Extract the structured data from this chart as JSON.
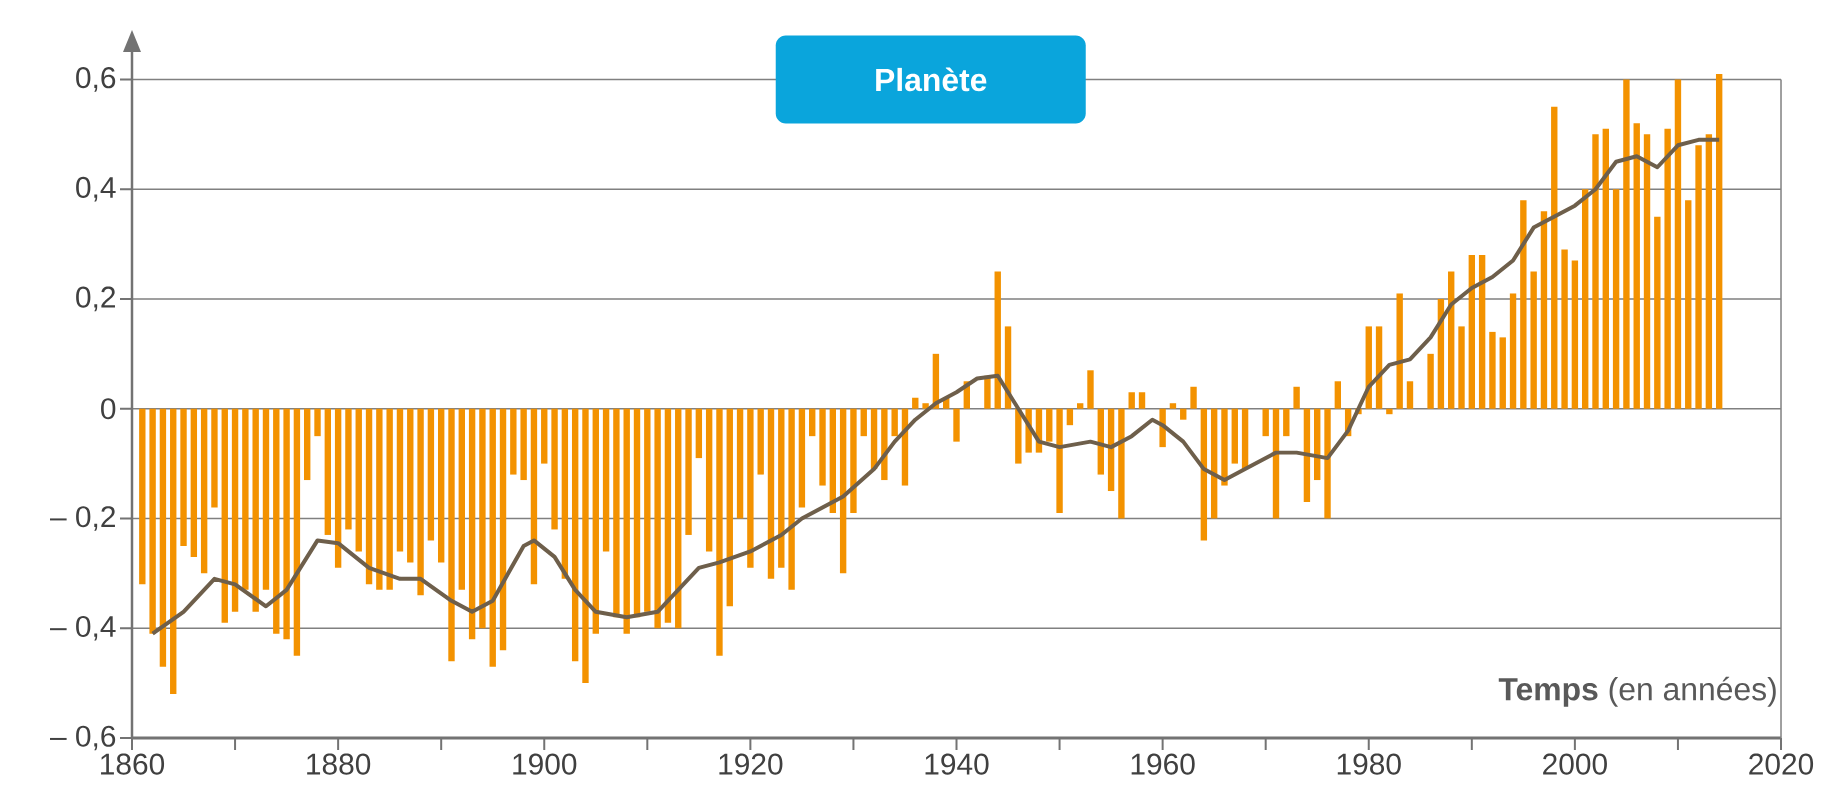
{
  "chart_data": {
    "type": "bar",
    "title": "Planète",
    "xlabel": "**Temps** (en années)",
    "xlim": [
      1860,
      2020
    ],
    "ylim": [
      -0.6,
      0.65
    ],
    "grid": "y",
    "xticks": [
      1860,
      {
        "value": 1870,
        "label": null
      },
      1880,
      {
        "value": 1890,
        "label": null
      },
      1900,
      {
        "value": 1910,
        "label": null
      },
      1920,
      {
        "value": 1930,
        "label": null
      },
      1940,
      {
        "value": 1950,
        "label": null
      },
      1960,
      {
        "value": 1970,
        "label": null
      },
      1980,
      {
        "value": 1990,
        "label": null
      },
      2000,
      {
        "value": 2010,
        "label": null
      },
      2020
    ],
    "yticks": [
      {
        "value": -0.6,
        "label": "– 0,6"
      },
      {
        "value": -0.4,
        "label": "– 0,4"
      },
      {
        "value": -0.2,
        "label": "– 0,2"
      },
      0,
      {
        "value": 0.2,
        "label": "0,2"
      },
      {
        "value": 0.4,
        "label": "0,4"
      },
      {
        "value": 0.6,
        "label": "0,6"
      }
    ],
    "series": [
      {
        "color": "#f39200",
        "x": [
          1861,
          1862,
          1863,
          1864,
          1865,
          1866,
          1867,
          1868,
          1869,
          1870,
          1871,
          1872,
          1873,
          1874,
          1875,
          1876,
          1877,
          1878,
          1879,
          1880,
          1881,
          1882,
          1883,
          1884,
          1885,
          1886,
          1887,
          1888,
          1889,
          1890,
          1891,
          1892,
          1893,
          1894,
          1895,
          1896,
          1897,
          1898,
          1899,
          1900,
          1901,
          1902,
          1903,
          1904,
          1905,
          1906,
          1907,
          1908,
          1909,
          1910,
          1911,
          1912,
          1913,
          1914,
          1915,
          1916,
          1917,
          1918,
          1919,
          1920,
          1921,
          1922,
          1923,
          1924,
          1925,
          1926,
          1927,
          1928,
          1929,
          1930,
          1931,
          1932,
          1933,
          1934,
          1935,
          1936,
          1937,
          1938,
          1939,
          1940,
          1941,
          1942,
          1943,
          1944,
          1945,
          1946,
          1947,
          1948,
          1949,
          1950,
          1951,
          1952,
          1953,
          1954,
          1955,
          1956,
          1957,
          1958,
          1959,
          1960,
          1961,
          1962,
          1963,
          1964,
          1965,
          1966,
          1967,
          1968,
          1969,
          1970,
          1971,
          1972,
          1973,
          1974,
          1975,
          1976,
          1977,
          1978,
          1979,
          1980,
          1981,
          1982,
          1983,
          1984,
          1985,
          1986,
          1987,
          1988,
          1989,
          1990,
          1991,
          1992,
          1993,
          1994,
          1995,
          1996,
          1997,
          1998,
          1999,
          2000,
          2001,
          2002,
          2003,
          2004,
          2005,
          2006,
          2007,
          2008,
          2009,
          2010,
          2011,
          2012,
          2013,
          2014
        ],
        "values": [
          -0.32,
          -0.41,
          -0.47,
          -0.52,
          -0.25,
          -0.27,
          -0.3,
          -0.18,
          -0.39,
          -0.37,
          -0.33,
          -0.37,
          -0.33,
          -0.41,
          -0.42,
          -0.45,
          -0.13,
          -0.05,
          -0.23,
          -0.29,
          -0.22,
          -0.26,
          -0.32,
          -0.33,
          -0.33,
          -0.26,
          -0.28,
          -0.34,
          -0.24,
          -0.28,
          -0.46,
          -0.33,
          -0.42,
          -0.4,
          -0.47,
          -0.44,
          -0.12,
          -0.13,
          -0.32,
          -0.1,
          -0.22,
          -0.31,
          -0.46,
          -0.5,
          -0.41,
          -0.26,
          -0.38,
          -0.41,
          -0.38,
          -0.37,
          -0.4,
          -0.39,
          -0.4,
          -0.23,
          -0.09,
          -0.26,
          -0.45,
          -0.36,
          -0.2,
          -0.29,
          -0.12,
          -0.31,
          -0.29,
          -0.33,
          -0.18,
          -0.05,
          -0.14,
          -0.19,
          -0.3,
          -0.19,
          -0.05,
          -0.11,
          -0.13,
          -0.05,
          -0.14,
          0.02,
          0.01,
          0.1,
          0.02,
          -0.06,
          0.05,
          0.0,
          0.06,
          0.25,
          0.15,
          -0.1,
          -0.08,
          -0.08,
          -0.06,
          -0.19,
          -0.03,
          0.01,
          0.07,
          -0.12,
          -0.15,
          -0.2,
          0.03,
          0.03,
          0.0,
          -0.07,
          0.01,
          -0.02,
          0.04,
          -0.24,
          -0.2,
          -0.14,
          -0.1,
          -0.11,
          0.0,
          -0.05,
          -0.2,
          -0.05,
          0.04,
          -0.17,
          -0.13,
          -0.2,
          0.05,
          -0.05,
          -0.01,
          0.15,
          0.15,
          -0.01,
          0.21,
          0.05,
          0.0,
          0.1,
          0.2,
          0.25,
          0.15,
          0.28,
          0.28,
          0.14,
          0.13,
          0.21,
          0.38,
          0.25,
          0.36,
          0.55,
          0.29,
          0.27,
          0.4,
          0.5,
          0.51,
          0.4,
          0.6,
          0.52,
          0.5,
          0.35,
          0.51,
          0.6,
          0.38,
          0.48,
          0.5,
          0.61
        ]
      },
      {
        "type": "line",
        "color": "#6e5f4b",
        "x": [
          1862,
          1865,
          1868,
          1870,
          1873,
          1875,
          1878,
          1880,
          1883,
          1886,
          1888,
          1891,
          1893,
          1895,
          1898,
          1899,
          1901,
          1903,
          1905,
          1908,
          1911,
          1913,
          1915,
          1917,
          1920,
          1923,
          1925,
          1927,
          1929,
          1932,
          1934,
          1936,
          1938,
          1940,
          1942,
          1944,
          1946,
          1948,
          1950,
          1953,
          1955,
          1957,
          1959,
          1960,
          1962,
          1964,
          1966,
          1968,
          1971,
          1973,
          1976,
          1978,
          1980,
          1982,
          1984,
          1986,
          1988,
          1990,
          1992,
          1994,
          1996,
          1998,
          2000,
          2002,
          2004,
          2006,
          2008,
          2010,
          2012,
          2014
        ],
        "values": [
          -0.41,
          -0.37,
          -0.31,
          -0.32,
          -0.36,
          -0.33,
          -0.24,
          -0.245,
          -0.29,
          -0.31,
          -0.31,
          -0.35,
          -0.37,
          -0.35,
          -0.25,
          -0.24,
          -0.27,
          -0.33,
          -0.37,
          -0.38,
          -0.37,
          -0.33,
          -0.29,
          -0.28,
          -0.26,
          -0.23,
          -0.2,
          -0.18,
          -0.16,
          -0.11,
          -0.06,
          -0.02,
          0.01,
          0.03,
          0.055,
          0.06,
          0.0,
          -0.06,
          -0.07,
          -0.06,
          -0.07,
          -0.05,
          -0.02,
          -0.03,
          -0.06,
          -0.11,
          -0.13,
          -0.11,
          -0.08,
          -0.08,
          -0.09,
          -0.04,
          0.04,
          0.08,
          0.09,
          0.13,
          0.19,
          0.22,
          0.24,
          0.27,
          0.33,
          0.35,
          0.37,
          0.4,
          0.45,
          0.46,
          0.44,
          0.48,
          0.49,
          0.49
        ]
      }
    ]
  }
}
